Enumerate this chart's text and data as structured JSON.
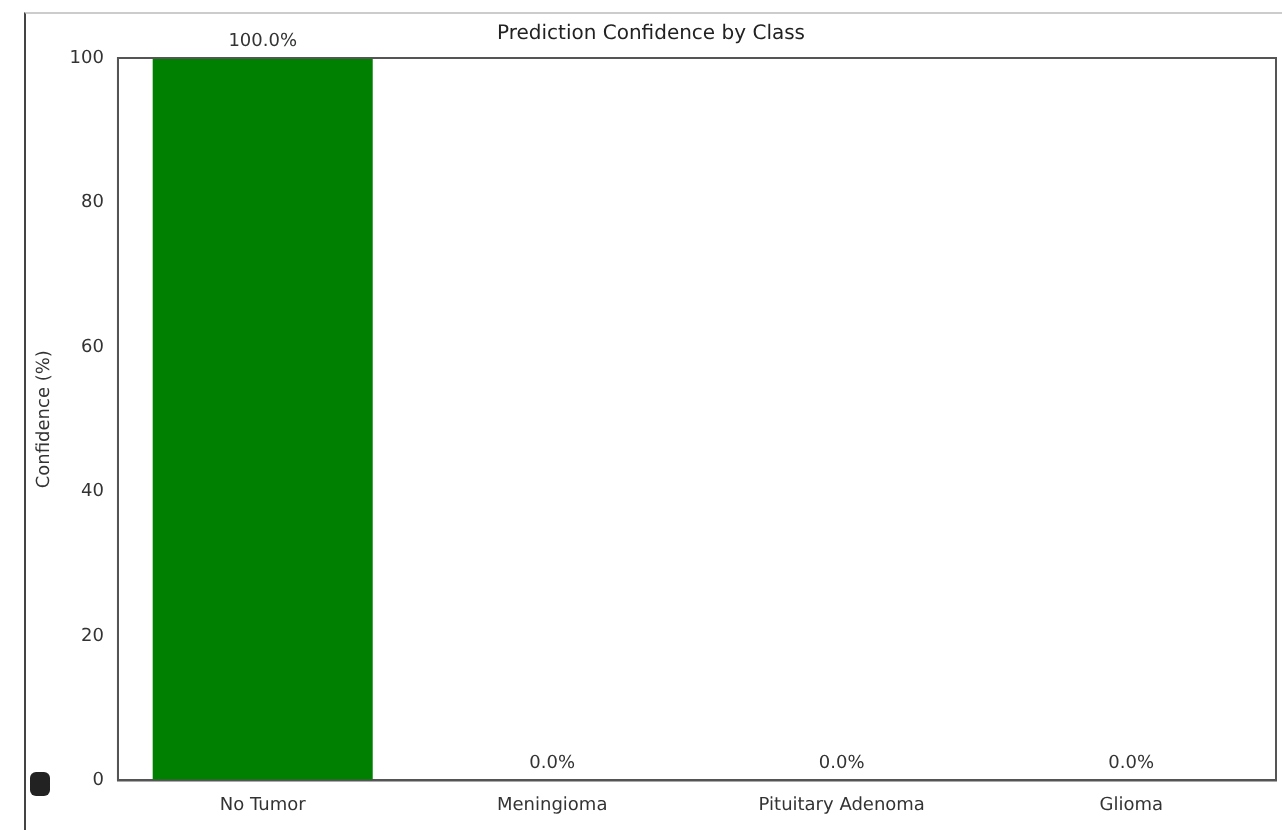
{
  "chart_data": {
    "type": "bar",
    "title": "Prediction Confidence by Class",
    "ylabel": "Confidence (%)",
    "categories": [
      "No Tumor",
      "Meningioma",
      "Pituitary Adenoma",
      "Glioma"
    ],
    "values": [
      100,
      0,
      0,
      0
    ],
    "color": "#008000",
    "value_labels": [
      "100.0%",
      "0.0%",
      "0.0%",
      "0.0%"
    ],
    "ylim": [
      0,
      100
    ],
    "yticks": [
      0,
      20,
      40,
      60,
      80,
      100
    ],
    "grid": false,
    "legend": false
  }
}
